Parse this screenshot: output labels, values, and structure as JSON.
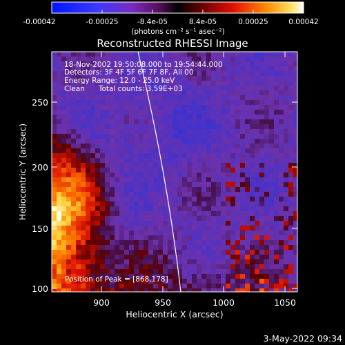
{
  "colorbar": {
    "ticks": [
      "-0.00042",
      "-0.00025",
      "-8.4e-05",
      "8.4e-05",
      "0.00025",
      "0.00042"
    ],
    "units": "(photons cm⁻² s⁻¹ asec⁻²)"
  },
  "title": "Reconstructed RHESSI Image",
  "info": {
    "line1": "18-Nov-2002 19:50:08.000 to 19:54:44.000",
    "line2": "Detectors: 3F 4F 5F 6F 7F 8F, All 00",
    "line3": "Energy Range: 12.0 - 25.0 keV",
    "line4": "Clean      Total counts: 3.59E+03"
  },
  "peak": "Position of Peak = [868,178]",
  "x_axis": {
    "label": "Heliocentric X (arcsec)",
    "ticks": [
      "900",
      "950",
      "1000",
      "1050"
    ]
  },
  "y_axis": {
    "label": "Heliocentric Y (arcsec)",
    "ticks": [
      "100",
      "150",
      "200",
      "250"
    ]
  },
  "footer": {
    "date": "3-May-2022 09:34"
  },
  "colors": {
    "background": "#000000",
    "foreground": "#ffffff",
    "limb": "#ffffff"
  }
}
